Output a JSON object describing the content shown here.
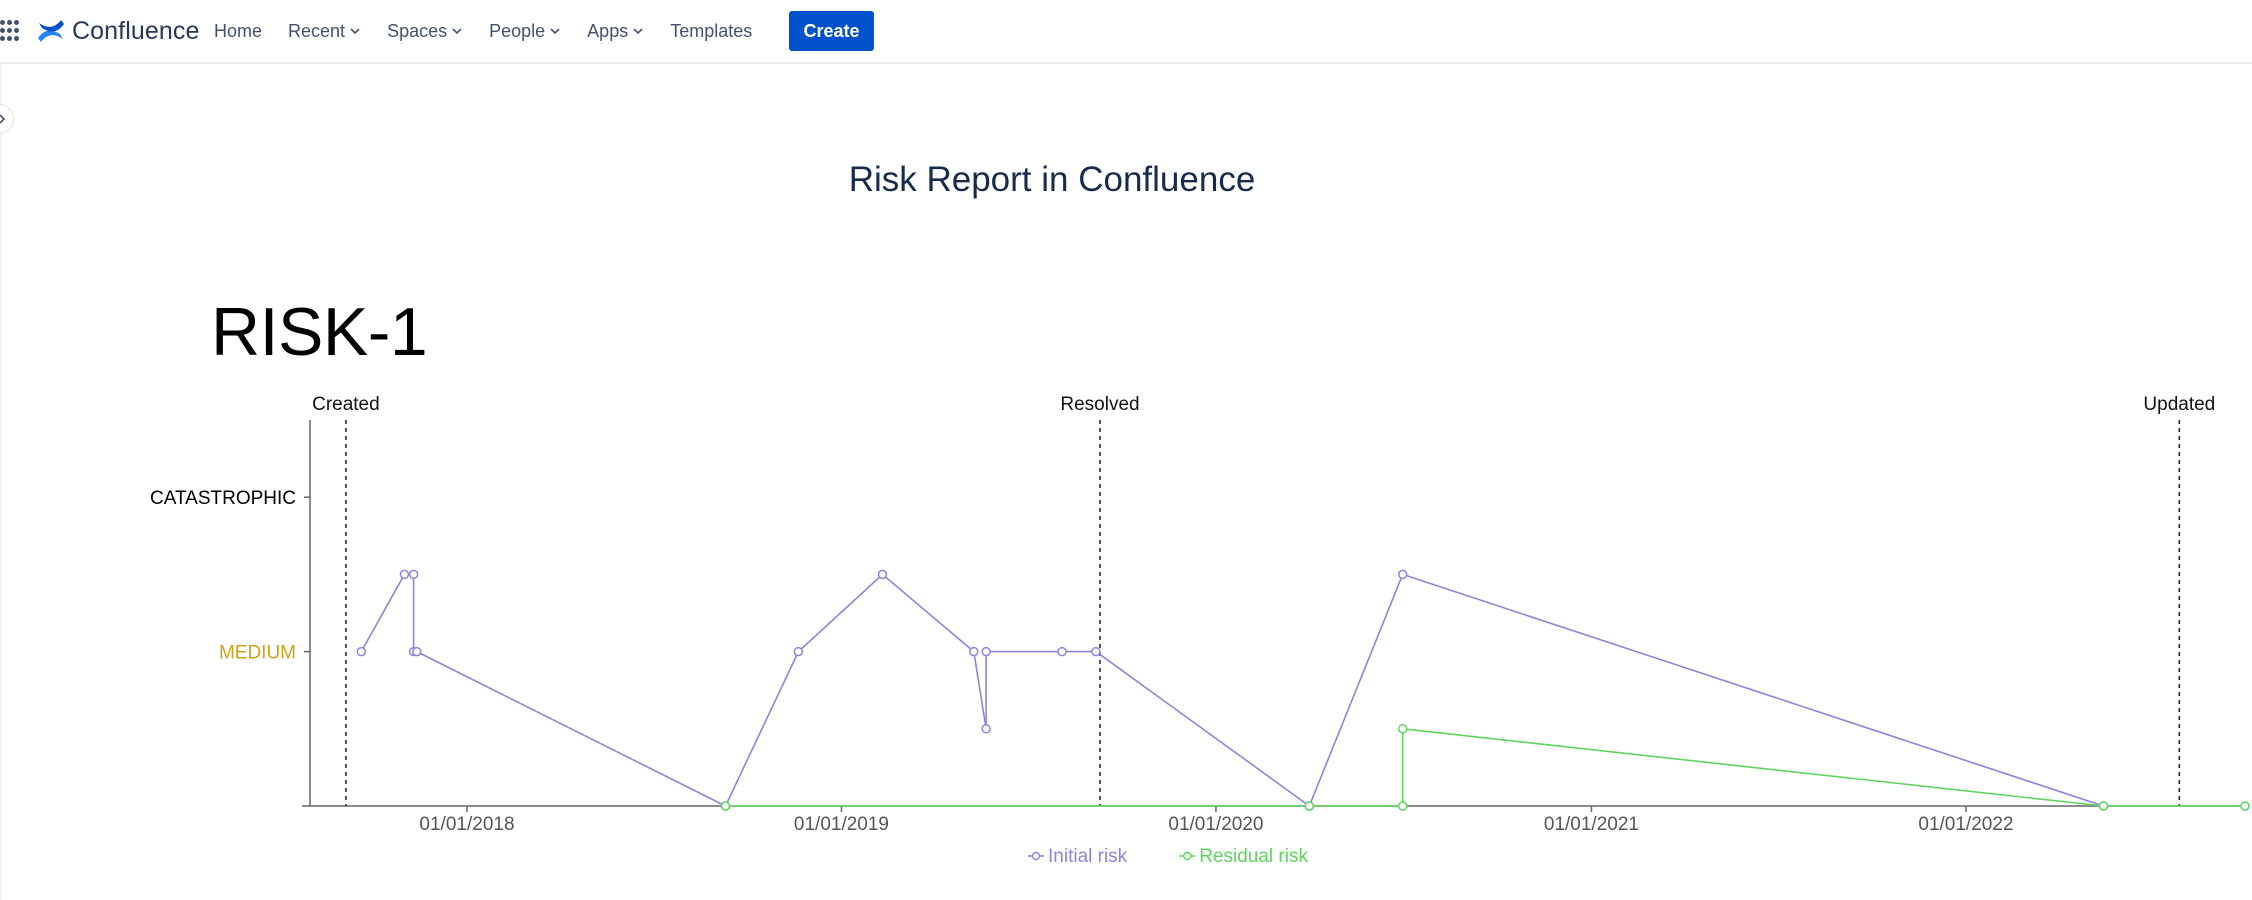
{
  "header": {
    "logo_text": "Confluence",
    "nav": [
      {
        "label": "Home",
        "dropdown": false
      },
      {
        "label": "Recent",
        "dropdown": true
      },
      {
        "label": "Spaces",
        "dropdown": true
      },
      {
        "label": "People",
        "dropdown": true
      },
      {
        "label": "Apps",
        "dropdown": true
      },
      {
        "label": "Templates",
        "dropdown": false
      }
    ],
    "create_label": "Create",
    "colors": {
      "brand": "#2684ff",
      "create_button": "#0052cc"
    },
    "icons": [
      "app-switcher-icon",
      "confluence-logo-icon",
      "chevron-down-icon",
      "chevron-right-icon"
    ]
  },
  "page": {
    "title": "Risk Report in Confluence",
    "risk_key": "RISK-1"
  },
  "chart_data": {
    "type": "line",
    "x_type": "date",
    "x_ticks": [
      "01/01/2018",
      "01/01/2019",
      "01/01/2020",
      "01/01/2021",
      "01/01/2022"
    ],
    "xlim": [
      "2017-08-01",
      "2022-09-30"
    ],
    "y_levels": [
      "NONE",
      "LOW",
      "MEDIUM",
      "HIGH",
      "CATASTROPHIC"
    ],
    "y_labels_shown": [
      {
        "level": 4,
        "label": "CATASTROPHIC",
        "color": "#000000"
      },
      {
        "level": 2,
        "label": "MEDIUM",
        "color": "#d4a017"
      }
    ],
    "ylim": [
      0,
      5
    ],
    "markers": [
      {
        "label": "Created",
        "date": "2017-09-05"
      },
      {
        "label": "Resolved",
        "date": "2019-09-10"
      },
      {
        "label": "Updated",
        "date": "2022-07-28"
      }
    ],
    "series": [
      {
        "name": "Initial risk",
        "color": "#8c85df",
        "points": [
          {
            "x": "2017-09-20",
            "y": 2
          },
          {
            "x": "2017-11-01",
            "y": 3
          },
          {
            "x": "2017-11-10",
            "y": 3
          },
          {
            "x": "2017-11-10",
            "y": 2
          },
          {
            "x": "2017-11-13",
            "y": 2
          },
          {
            "x": "2018-09-10",
            "y": 0
          },
          {
            "x": "2018-11-20",
            "y": 2
          },
          {
            "x": "2019-02-10",
            "y": 3
          },
          {
            "x": "2019-05-10",
            "y": 2
          },
          {
            "x": "2019-05-22",
            "y": 1
          },
          {
            "x": "2019-05-22",
            "y": 2
          },
          {
            "x": "2019-08-04",
            "y": 2
          },
          {
            "x": "2019-09-06",
            "y": 2
          },
          {
            "x": "2020-04-01",
            "y": 0
          },
          {
            "x": "2020-07-01",
            "y": 3
          },
          {
            "x": "2022-05-15",
            "y": 0
          }
        ]
      },
      {
        "name": "Residual risk",
        "color": "#5fd55f",
        "points": [
          {
            "x": "2018-09-10",
            "y": 0
          },
          {
            "x": "2020-04-01",
            "y": 0
          },
          {
            "x": "2020-07-01",
            "y": 0
          },
          {
            "x": "2020-07-01",
            "y": 1
          },
          {
            "x": "2022-05-15",
            "y": 0
          },
          {
            "x": "2022-09-30",
            "y": 0
          }
        ]
      }
    ]
  }
}
